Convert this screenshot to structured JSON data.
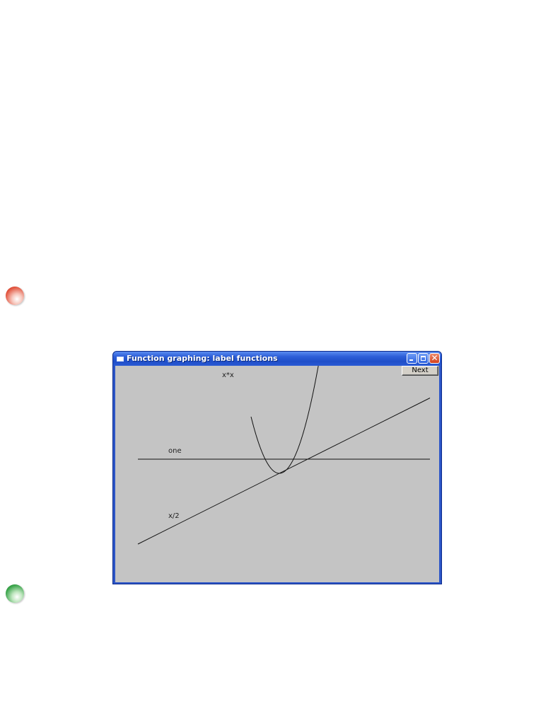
{
  "window": {
    "title": "Function graphing: label functions",
    "next_label": "Next"
  },
  "chart_data": {
    "type": "line",
    "series": [
      {
        "name": "x*x"
      },
      {
        "name": "one"
      },
      {
        "name": "x/2"
      }
    ],
    "colors": {
      "client_background": "#c4c4c4",
      "title_bar": "#2d56c7",
      "line": "#111111"
    }
  }
}
